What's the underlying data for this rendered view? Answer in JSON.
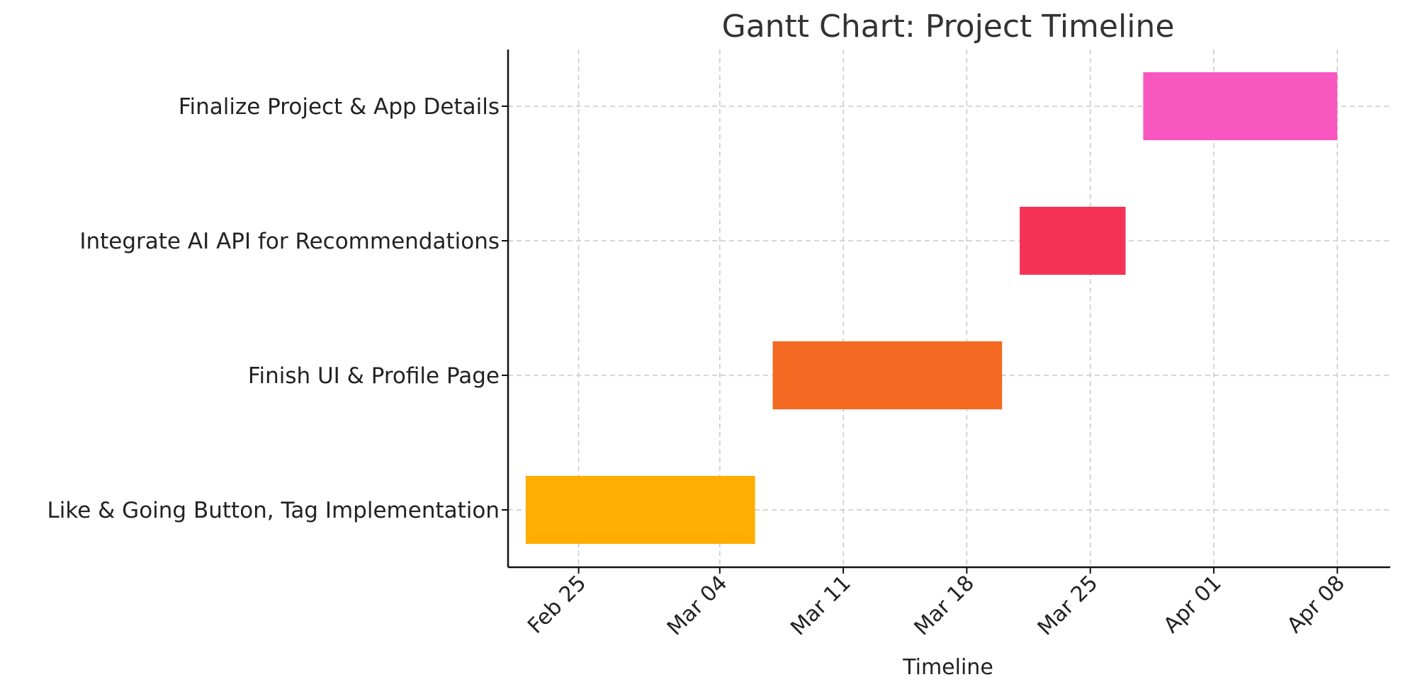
{
  "chart_data": {
    "type": "gantt",
    "title": "Gantt Chart: Project Timeline",
    "xlabel": "Timeline",
    "ylabel": "",
    "x_axis": {
      "type": "date",
      "range": [
        "2024-02-21",
        "2024-04-11"
      ],
      "ticks": [
        {
          "date": "2024-02-25",
          "label": "Feb 25"
        },
        {
          "date": "2024-03-04",
          "label": "Mar 04"
        },
        {
          "date": "2024-03-11",
          "label": "Mar 11"
        },
        {
          "date": "2024-03-18",
          "label": "Mar 18"
        },
        {
          "date": "2024-03-25",
          "label": "Mar 25"
        },
        {
          "date": "2024-04-01",
          "label": "Apr 01"
        },
        {
          "date": "2024-04-08",
          "label": "Apr 08"
        }
      ]
    },
    "grid": true,
    "legend": "none",
    "tasks": [
      {
        "name": "Like & Going Button, Tag Implementation",
        "start": "2024-02-22",
        "end": "2024-03-06",
        "color": "#FFAE00"
      },
      {
        "name": "Finish UI & Profile Page",
        "start": "2024-03-07",
        "end": "2024-03-20",
        "color": "#F46A22"
      },
      {
        "name": "Integrate AI API for Recommendations",
        "start": "2024-03-21",
        "end": "2024-03-27",
        "color": "#F43356"
      },
      {
        "name": "Finalize Project & App Details",
        "start": "2024-03-28",
        "end": "2024-04-08",
        "color": "#F957C0"
      }
    ]
  }
}
